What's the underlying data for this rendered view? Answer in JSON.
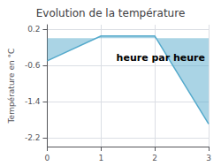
{
  "chart_data": {
    "type": "area",
    "title": "Evolution de la température",
    "annotation": "heure par heure",
    "ylabel": "Température en °C",
    "x": [
      0,
      1,
      2,
      3
    ],
    "values": [
      -0.5,
      0.05,
      0.05,
      -1.9
    ],
    "xlim": [
      0,
      3
    ],
    "ylim": [
      -2.4,
      0.3
    ],
    "xticks": [
      0,
      1,
      2,
      3
    ],
    "yticks": [
      0.2,
      -0.6,
      -1.4,
      -2.2
    ],
    "grid": true,
    "color": "#55aacc"
  }
}
